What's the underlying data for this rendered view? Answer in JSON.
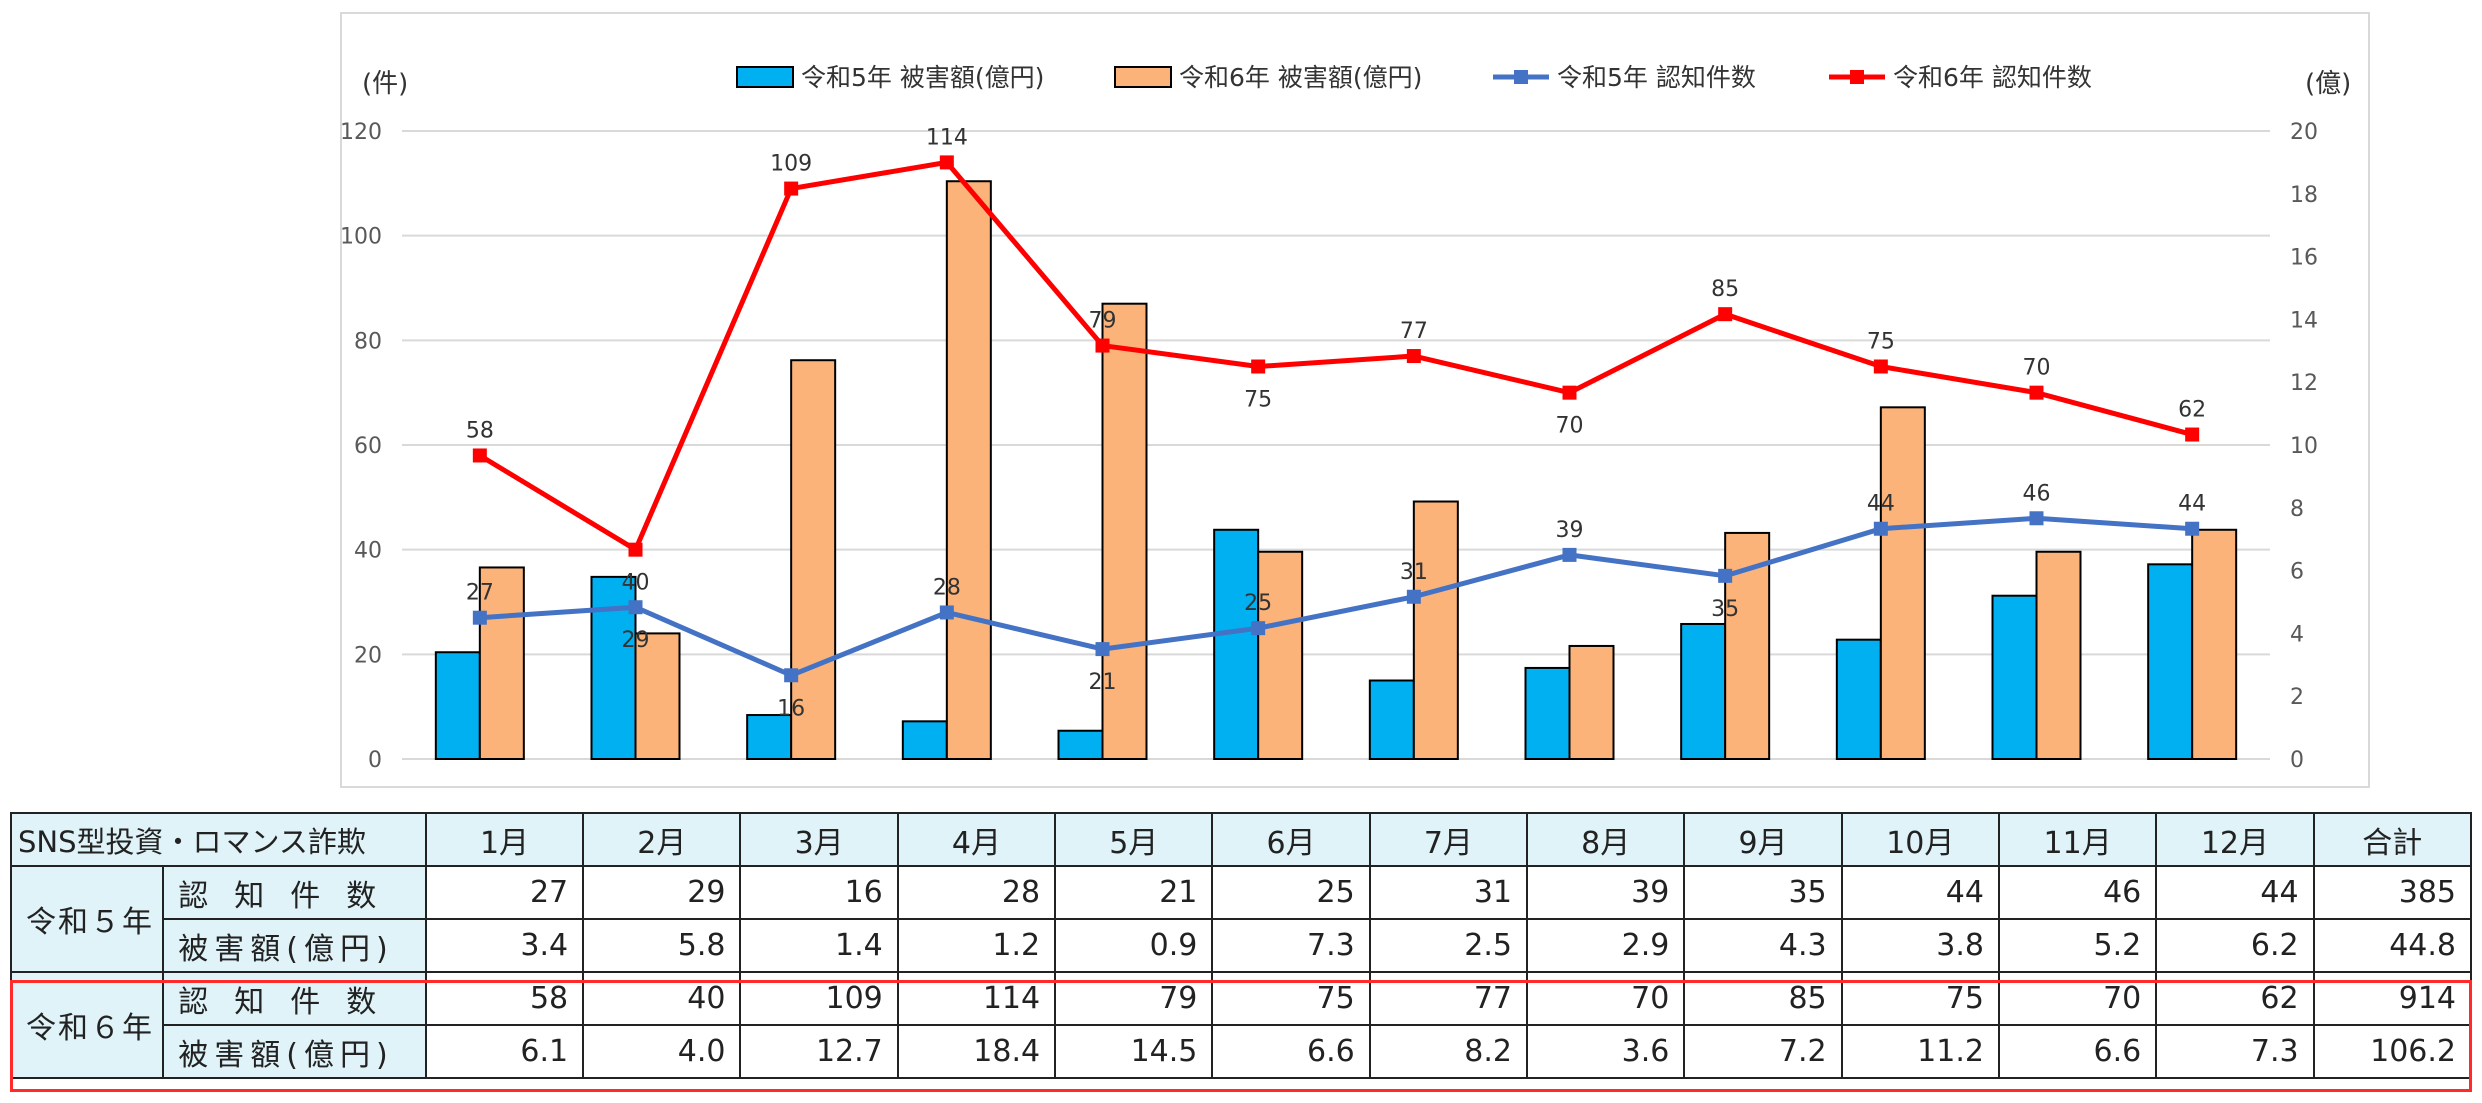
{
  "chart_data": {
    "type": "bar+line",
    "categories": [
      "1月",
      "2月",
      "3月",
      "4月",
      "5月",
      "6月",
      "7月",
      "8月",
      "9月",
      "10月",
      "11月",
      "12月"
    ],
    "series": [
      {
        "name": "令和5年 被害額(億円)",
        "kind": "bar",
        "axis": "right",
        "color": "#00b0f0",
        "values": [
          3.4,
          5.8,
          1.4,
          1.2,
          0.9,
          7.3,
          2.5,
          2.9,
          4.3,
          3.8,
          5.2,
          6.2
        ]
      },
      {
        "name": "令和6年 被害額(億円)",
        "kind": "bar",
        "axis": "right",
        "color": "#fbb37a",
        "values": [
          6.1,
          4.0,
          12.7,
          18.4,
          14.5,
          6.6,
          8.2,
          3.6,
          7.2,
          11.2,
          6.6,
          7.3
        ]
      },
      {
        "name": "令和5年 認知件数",
        "kind": "line",
        "axis": "left",
        "color": "#4472c4",
        "values": [
          27,
          29,
          16,
          28,
          21,
          25,
          31,
          39,
          35,
          44,
          46,
          44
        ]
      },
      {
        "name": "令和6年 認知件数",
        "kind": "line",
        "axis": "left",
        "color": "#ff0000",
        "values": [
          58,
          40,
          109,
          114,
          79,
          75,
          77,
          70,
          85,
          75,
          70,
          62
        ]
      }
    ],
    "left_axis": {
      "unit": "(件)",
      "ylim": [
        0,
        120
      ],
      "ticks": [
        "0",
        "20",
        "40",
        "60",
        "80",
        "100",
        "120"
      ]
    },
    "right_axis": {
      "unit": "(億)",
      "ylim": [
        0,
        20
      ],
      "ticks": [
        "0",
        "2",
        "4",
        "6",
        "8",
        "10",
        "12",
        "14",
        "16",
        "18",
        "20"
      ]
    },
    "grid": true,
    "legend_position": "top"
  },
  "table": {
    "corner": "SNS型投資・ロマンス詐欺",
    "headers": [
      "1月",
      "2月",
      "3月",
      "4月",
      "5月",
      "6月",
      "7月",
      "8月",
      "9月",
      "10月",
      "11月",
      "12月",
      "合計"
    ],
    "groups": [
      {
        "year": "令和５年",
        "rows": [
          {
            "label": "認知件数",
            "values": [
              "27",
              "29",
              "16",
              "28",
              "21",
              "25",
              "31",
              "39",
              "35",
              "44",
              "46",
              "44",
              "385"
            ]
          },
          {
            "label": "被害額(億円)",
            "values": [
              "3.4",
              "5.8",
              "1.4",
              "1.2",
              "0.9",
              "7.3",
              "2.5",
              "2.9",
              "4.3",
              "3.8",
              "5.2",
              "6.2",
              "44.8"
            ]
          }
        ]
      },
      {
        "year": "令和６年",
        "rows": [
          {
            "label": "認知件数",
            "values": [
              "58",
              "40",
              "109",
              "114",
              "79",
              "75",
              "77",
              "70",
              "85",
              "75",
              "70",
              "62",
              "914"
            ]
          },
          {
            "label": "被害額(億円)",
            "values": [
              "6.1",
              "4.0",
              "12.7",
              "18.4",
              "14.5",
              "6.6",
              "8.2",
              "3.6",
              "7.2",
              "11.2",
              "6.6",
              "7.3",
              "106.2"
            ]
          }
        ]
      }
    ],
    "highlight_color": "#ff2a2a"
  }
}
